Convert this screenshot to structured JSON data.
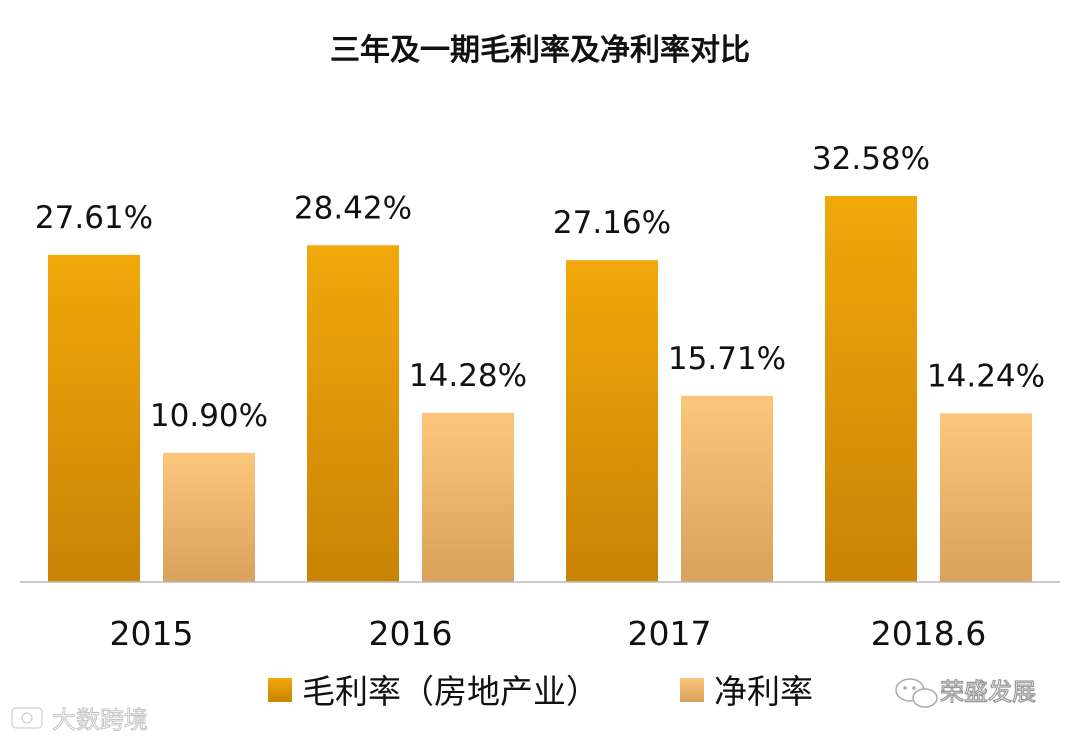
{
  "chart_data": {
    "type": "bar",
    "title": "三年及一期毛利率及净利率对比",
    "categories": [
      "2015",
      "2016",
      "2017",
      "2018.6"
    ],
    "series": [
      {
        "name": "毛利率（房地产业）",
        "values": [
          27.61,
          28.42,
          27.16,
          32.58
        ],
        "labels": [
          "27.61%",
          "28.42%",
          "27.16%",
          "32.58%"
        ]
      },
      {
        "name": "净利率",
        "values": [
          10.9,
          14.28,
          15.71,
          14.24
        ],
        "labels": [
          "10.90%",
          "14.28%",
          "15.71%",
          "14.24%"
        ]
      }
    ],
    "xlabel": "",
    "ylabel": "",
    "ylim": [
      0,
      33
    ],
    "y_axis_visible": false,
    "grid": false,
    "legend": "bottom"
  },
  "colors": {
    "gross_margin_top": "#F1A80A",
    "gross_margin_bottom": "#C98306",
    "net_margin_top": "#FCC67C",
    "net_margin_bottom": "#D9A25B",
    "axis": "#BBBBBB"
  },
  "watermarks": {
    "left": "大数跨境",
    "right": "荣盛发展"
  }
}
